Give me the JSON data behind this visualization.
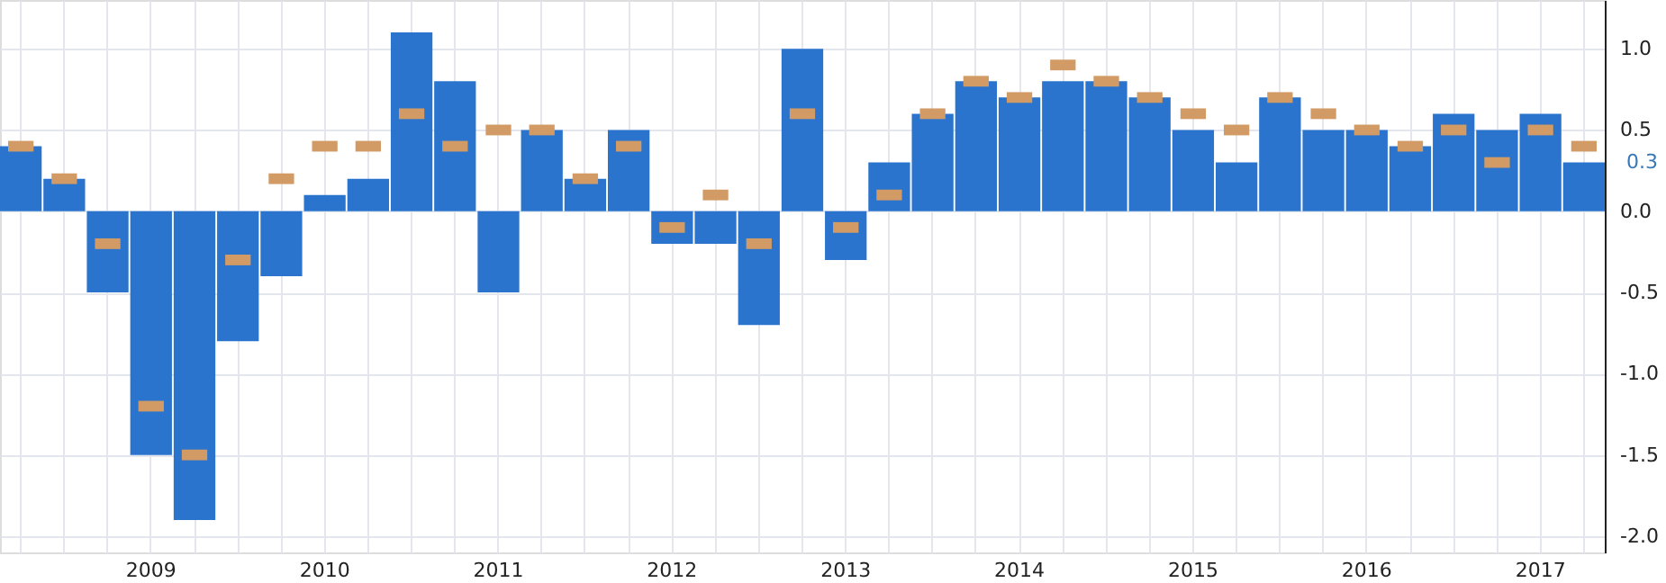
{
  "chart_data": {
    "type": "bar",
    "categories": [
      null,
      null,
      null,
      "2009",
      null,
      null,
      null,
      "2010",
      null,
      null,
      null,
      "2011",
      null,
      null,
      null,
      "2012",
      null,
      null,
      null,
      "2013",
      null,
      null,
      null,
      "2014",
      null,
      null,
      null,
      "2015",
      null,
      null,
      null,
      "2016",
      null,
      null,
      null,
      "2017",
      null
    ],
    "series": [
      {
        "color": "#2a74cd",
        "values": [
          0.4,
          0.2,
          -0.5,
          -1.5,
          -1.9,
          -0.8,
          -0.4,
          0.1,
          0.2,
          1.1,
          0.8,
          -0.5,
          0.5,
          0.2,
          0.5,
          -0.2,
          -0.2,
          -0.7,
          1.0,
          -0.3,
          0.3,
          0.6,
          0.8,
          0.7,
          0.8,
          0.8,
          0.7,
          0.5,
          0.3,
          0.7,
          0.5,
          0.5,
          0.4,
          0.6,
          0.5,
          0.6,
          0.3
        ]
      },
      {
        "type": "scatter",
        "color": "#d29b65",
        "values": [
          0.4,
          0.2,
          -0.2,
          -1.2,
          -1.5,
          -0.3,
          0.2,
          0.4,
          0.4,
          0.6,
          0.4,
          0.5,
          0.5,
          0.2,
          0.4,
          -0.1,
          0.1,
          -0.2,
          0.6,
          -0.1,
          0.1,
          0.6,
          0.8,
          0.7,
          0.9,
          0.8,
          0.7,
          0.6,
          0.5,
          0.7,
          0.6,
          0.5,
          0.4,
          0.5,
          0.3,
          0.5,
          0.4
        ]
      }
    ],
    "ylim": [
      -2.1,
      1.3
    ],
    "yticks": [
      {
        "value": -2,
        "label": "-2.0"
      },
      -1.5,
      {
        "value": -1,
        "label": "-1.0"
      },
      -0.5,
      {
        "value": 0,
        "label": "0.0"
      },
      0.5,
      {
        "value": 1,
        "label": "1.0"
      }
    ],
    "grid": true,
    "legend": false,
    "annotations": [
      "0.3"
    ]
  }
}
